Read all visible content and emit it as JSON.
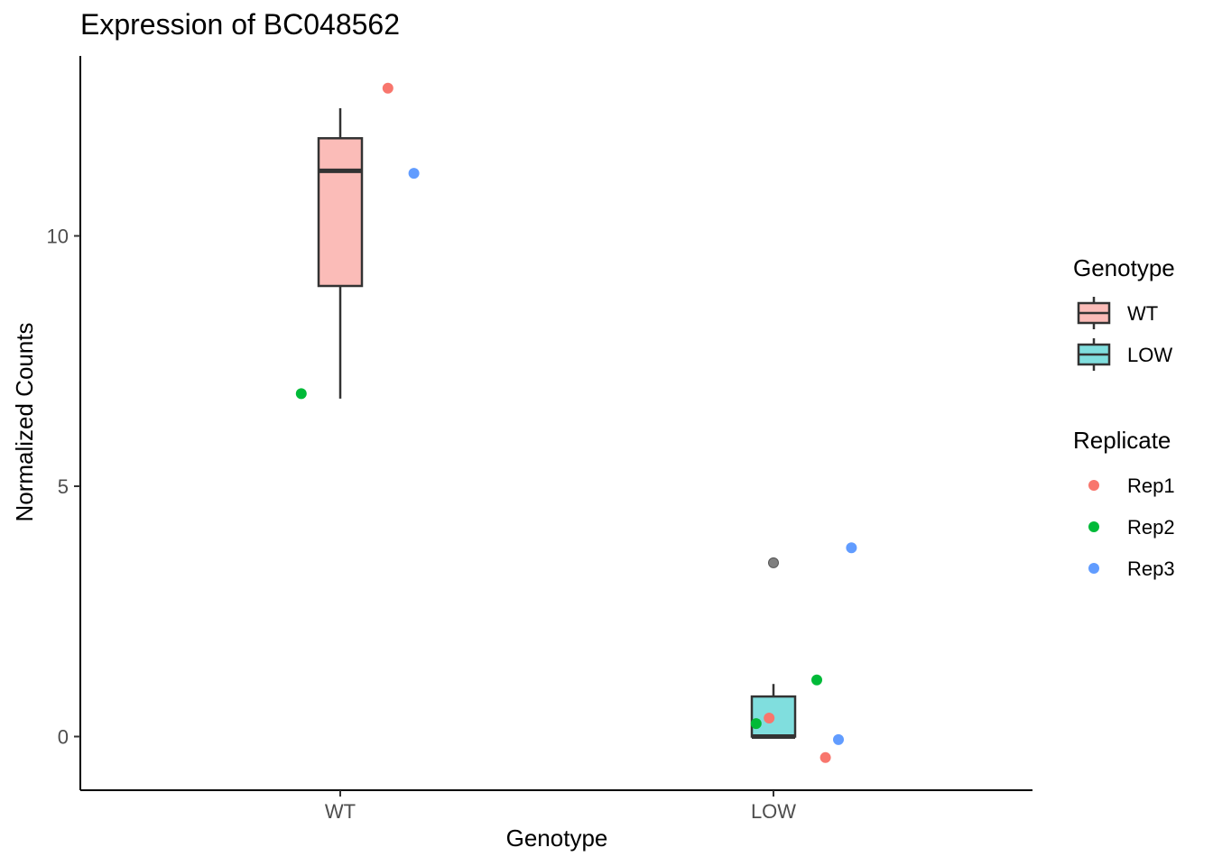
{
  "chart_data": {
    "type": "box",
    "title": "Expression of BC048562",
    "xlabel": "Genotype",
    "ylabel": "Normalized Counts",
    "categories": [
      "WT",
      "LOW"
    ],
    "y_ticks": [
      0,
      5,
      10
    ],
    "ylim": [
      -1.05,
      13.65
    ],
    "grid": false,
    "boxes": [
      {
        "category": "WT",
        "fill": "#fbbcb8",
        "min": 6.75,
        "q1": 9.0,
        "median": 11.3,
        "q3": 11.95,
        "max": 12.55
      },
      {
        "category": "LOW",
        "fill": "#80dede",
        "min": 0.0,
        "q1": 0.0,
        "median": 0.0,
        "q3": 0.8,
        "max": 1.05,
        "outliers": [
          3.47
        ]
      }
    ],
    "points": [
      {
        "category": "WT",
        "replicate": "Rep1",
        "x_offset": 0.11,
        "y": 12.95
      },
      {
        "category": "WT",
        "replicate": "Rep2",
        "x_offset": -0.09,
        "y": 6.85
      },
      {
        "category": "WT",
        "replicate": "Rep3",
        "x_offset": 0.17,
        "y": 11.25
      },
      {
        "category": "LOW",
        "replicate": "Rep1",
        "x_offset": -0.01,
        "y": 0.37
      },
      {
        "category": "LOW",
        "replicate": "Rep1",
        "x_offset": 0.12,
        "y": -0.42
      },
      {
        "category": "LOW",
        "replicate": "Rep2",
        "x_offset": -0.04,
        "y": 0.26
      },
      {
        "category": "LOW",
        "replicate": "Rep2",
        "x_offset": 0.1,
        "y": 1.13
      },
      {
        "category": "LOW",
        "replicate": "Rep3",
        "x_offset": 0.15,
        "y": -0.06
      },
      {
        "category": "LOW",
        "replicate": "Rep3",
        "x_offset": 0.18,
        "y": 3.77
      }
    ],
    "outlier_color": "#7f7f7f",
    "legends": [
      {
        "title": "Genotype",
        "items": [
          {
            "label": "WT",
            "color": "#fbbcb8"
          },
          {
            "label": "LOW",
            "color": "#80dede"
          }
        ]
      },
      {
        "title": "Replicate",
        "items": [
          {
            "label": "Rep1",
            "color": "#f8766d"
          },
          {
            "label": "Rep2",
            "color": "#00ba38"
          },
          {
            "label": "Rep3",
            "color": "#619cff"
          }
        ]
      }
    ],
    "legend_position": "right"
  }
}
